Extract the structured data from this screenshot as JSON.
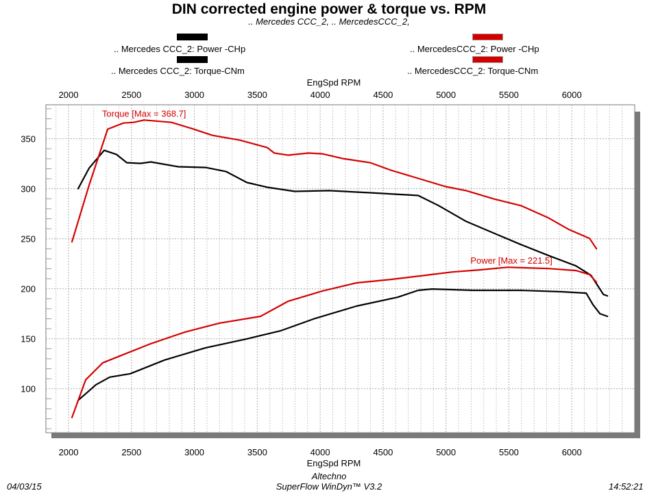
{
  "chart_data": {
    "type": "line",
    "title": "DIN corrected engine power & torque vs. RPM",
    "subtitle": ".. Mercedes CCC_2, .. MercedesCCC_2,",
    "xlabel": "EngSpd RPM",
    "xlabel_top": "EngSpd RPM",
    "ylabel": "",
    "xlim": [
      1820,
      6500
    ],
    "ylim": [
      56,
      384
    ],
    "xticks": [
      2000,
      2500,
      3000,
      3500,
      4000,
      4500,
      5000,
      5500,
      6000
    ],
    "xtick_labels": [
      "2000",
      "2500",
      "3000",
      "3500",
      "4000",
      "4500",
      "5000",
      "5500",
      "6000"
    ],
    "yticks": [
      100,
      150,
      200,
      250,
      300,
      350
    ],
    "ytick_labels": [
      "100",
      "150",
      "200",
      "250",
      "300",
      "350"
    ],
    "grid": true,
    "legend": [
      {
        "label": ".. Mercedes CCC_2: Power -CHp",
        "color": "#000000",
        "position": "top-left"
      },
      {
        "label": ".. Mercedes CCC_2: Torque-CNm",
        "color": "#000000",
        "position": "top-left"
      },
      {
        "label": ".. MercedesCCC_2: Power -CHp",
        "color": "#d40000",
        "position": "top-right"
      },
      {
        "label": ".. MercedesCCC_2: Torque-CNm",
        "color": "#d40000",
        "position": "top-right"
      }
    ],
    "annotations": [
      {
        "text": "Torque [Max = 368.7]",
        "x": 2600,
        "y": 372,
        "color": "#d40000"
      },
      {
        "text": "Power  [Max = 221.5]",
        "x": 5520,
        "y": 225,
        "color": "#d40000"
      }
    ],
    "series": [
      {
        "name": ".. Mercedes CCC_2: Torque-CNm",
        "color": "#000000",
        "x": [
          2076,
          2163,
          2283,
          2381,
          2463,
          2572,
          2654,
          2872,
          3090,
          3253,
          3417,
          3580,
          3798,
          4071,
          4398,
          4779,
          4943,
          5161,
          5379,
          5597,
          5815,
          6033,
          6153,
          6251,
          6283
        ],
        "y": [
          300.1,
          320.6,
          338.4,
          334.3,
          326.1,
          325.4,
          326.8,
          322.0,
          321.3,
          317.2,
          306.3,
          301.5,
          297.4,
          298.1,
          296.0,
          293.3,
          283.1,
          267.3,
          255.7,
          244.1,
          233.2,
          222.9,
          213.4,
          194.3,
          192.9
        ]
      },
      {
        "name": ".. MercedesCCC_2: Torque-CNm",
        "color": "#d40000",
        "x": [
          2027,
          2163,
          2311,
          2436,
          2518,
          2600,
          2817,
          2981,
          3144,
          3362,
          3580,
          3635,
          3744,
          3907,
          4016,
          4180,
          4398,
          4561,
          4779,
          4997,
          5161,
          5379,
          5597,
          5815,
          5978,
          6142,
          6196
        ],
        "y": [
          246.9,
          303.6,
          359.6,
          365.7,
          366.4,
          368.7,
          366.4,
          360.2,
          353.4,
          348.6,
          341.1,
          335.7,
          333.6,
          335.7,
          335.0,
          330.2,
          326.1,
          318.6,
          310.4,
          302.2,
          298.1,
          289.9,
          283.1,
          270.8,
          259.2,
          250.3,
          240.0
        ]
      },
      {
        "name": ".. Mercedes CCC_2: Power -CHp",
        "color": "#000000",
        "x": [
          2076,
          2218,
          2327,
          2490,
          2763,
          3090,
          3417,
          3689,
          3962,
          4289,
          4616,
          4779,
          4888,
          5215,
          5597,
          5924,
          6114,
          6169,
          6223,
          6283
        ],
        "y": [
          88.4,
          104.1,
          111.6,
          115.0,
          128.7,
          141.0,
          149.9,
          158.1,
          170.4,
          182.7,
          191.5,
          198.4,
          199.7,
          198.4,
          198.4,
          197.0,
          195.6,
          184.0,
          175.1,
          172.4
        ]
      },
      {
        "name": ".. MercedesCCC_2: Power -CHp",
        "color": "#d40000",
        "x": [
          2027,
          2136,
          2272,
          2436,
          2654,
          2926,
          3199,
          3526,
          3744,
          4016,
          4289,
          4561,
          4834,
          5052,
          5270,
          5488,
          5815,
          6033,
          6142,
          6196
        ],
        "y": [
          71.3,
          108.9,
          126.0,
          134.2,
          145.1,
          156.7,
          165.6,
          172.4,
          187.4,
          197.7,
          205.9,
          209.3,
          213.4,
          216.8,
          218.9,
          221.5,
          220.2,
          218.2,
          214.1,
          206.6
        ]
      }
    ]
  },
  "footer": {
    "date": "04/03/15",
    "company": "Altechno",
    "software": "SuperFlow WinDyn™ V3.2",
    "time": "14:52:21"
  }
}
